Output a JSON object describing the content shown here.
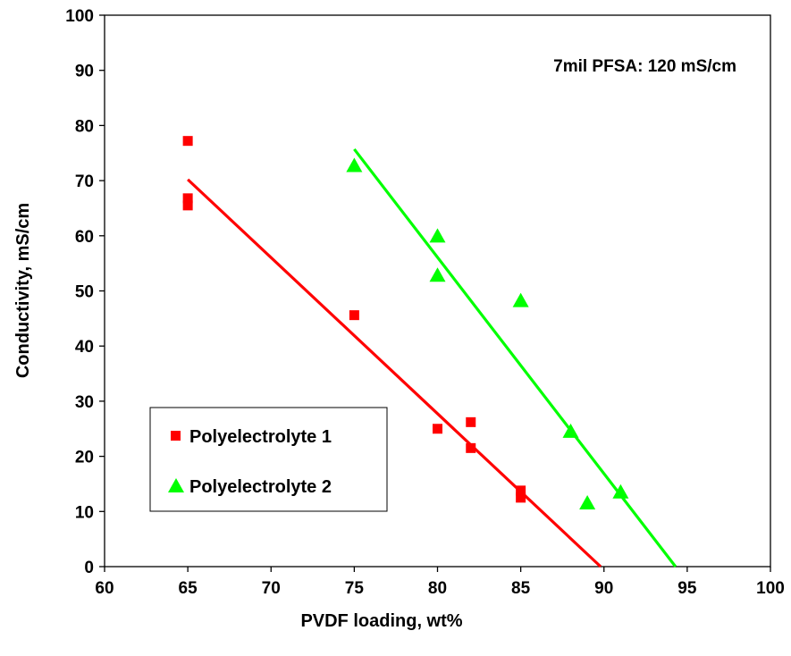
{
  "chart_data": {
    "type": "scatter",
    "xlabel": "PVDF loading, wt%",
    "ylabel": "Conductivity, mS/cm",
    "xlim": [
      60,
      100
    ],
    "ylim": [
      0,
      100
    ],
    "x_ticks": [
      60,
      65,
      70,
      75,
      80,
      85,
      90,
      95,
      100
    ],
    "y_ticks": [
      0,
      10,
      20,
      30,
      40,
      50,
      60,
      70,
      80,
      90,
      100
    ],
    "grid": false,
    "legend_position": "bottom-left",
    "annotation": "7mil PFSA: 120 mS/cm",
    "series": [
      {
        "name": "Polyelectrolyte 1",
        "marker": "square",
        "color": "#ff0000",
        "points": [
          {
            "x": 65,
            "y": 77.2
          },
          {
            "x": 65,
            "y": 66.8
          },
          {
            "x": 65,
            "y": 65.5
          },
          {
            "x": 75,
            "y": 45.6
          },
          {
            "x": 80,
            "y": 25.0
          },
          {
            "x": 82,
            "y": 26.2
          },
          {
            "x": 82,
            "y": 21.5
          },
          {
            "x": 85,
            "y": 13.8
          },
          {
            "x": 85,
            "y": 12.5
          }
        ],
        "trendline": [
          {
            "x": 65,
            "y": 70.2
          },
          {
            "x": 89.8,
            "y": 0
          }
        ]
      },
      {
        "name": "Polyelectrolyte 2",
        "marker": "triangle",
        "color": "#00ff00",
        "points": [
          {
            "x": 75,
            "y": 72.7
          },
          {
            "x": 80,
            "y": 59.9
          },
          {
            "x": 80,
            "y": 52.8
          },
          {
            "x": 85,
            "y": 48.2
          },
          {
            "x": 88,
            "y": 24.5
          },
          {
            "x": 89,
            "y": 11.5
          },
          {
            "x": 91,
            "y": 13.5
          }
        ],
        "trendline": [
          {
            "x": 75,
            "y": 75.7
          },
          {
            "x": 94.3,
            "y": 0
          }
        ]
      }
    ]
  }
}
